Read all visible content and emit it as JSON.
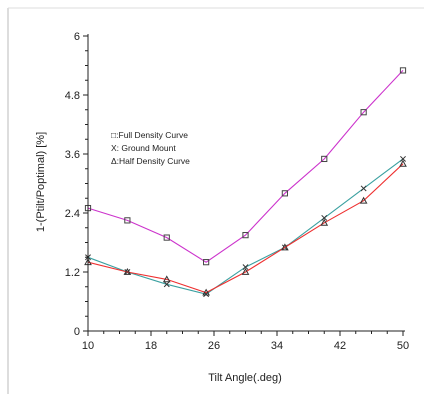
{
  "chart_data": {
    "type": "line",
    "title": "",
    "xlabel": "Tilt Angle(.deg)",
    "ylabel": "1-(Ptilt/Poptimal) [%]",
    "xlim": [
      10,
      50
    ],
    "ylim": [
      0,
      6
    ],
    "x_ticks": [
      "10",
      "18",
      "26",
      "34",
      "42",
      "50"
    ],
    "y_ticks": [
      "0",
      "1.2",
      "2.4",
      "3.6",
      "4.8",
      "6"
    ],
    "grid": false,
    "legend_position": "upper-left",
    "x": [
      10,
      15,
      20,
      25,
      30,
      35,
      40,
      45,
      50
    ],
    "series": [
      {
        "name": "□:Full Density Curve",
        "marker": "square",
        "color": "#cc33cc",
        "values": [
          2.5,
          2.25,
          1.9,
          1.4,
          1.95,
          2.8,
          3.5,
          4.45,
          5.3
        ]
      },
      {
        "name": "X: Ground Mount",
        "marker": "x",
        "color": "#3aa0a0",
        "values": [
          1.5,
          1.2,
          0.95,
          0.75,
          1.3,
          1.7,
          2.3,
          2.9,
          3.5
        ]
      },
      {
        "name": "Δ:Half Density Curve",
        "marker": "triangle",
        "color": "#ee3030",
        "values": [
          1.4,
          1.2,
          1.05,
          0.78,
          1.2,
          1.7,
          2.2,
          2.65,
          3.4
        ]
      }
    ]
  }
}
